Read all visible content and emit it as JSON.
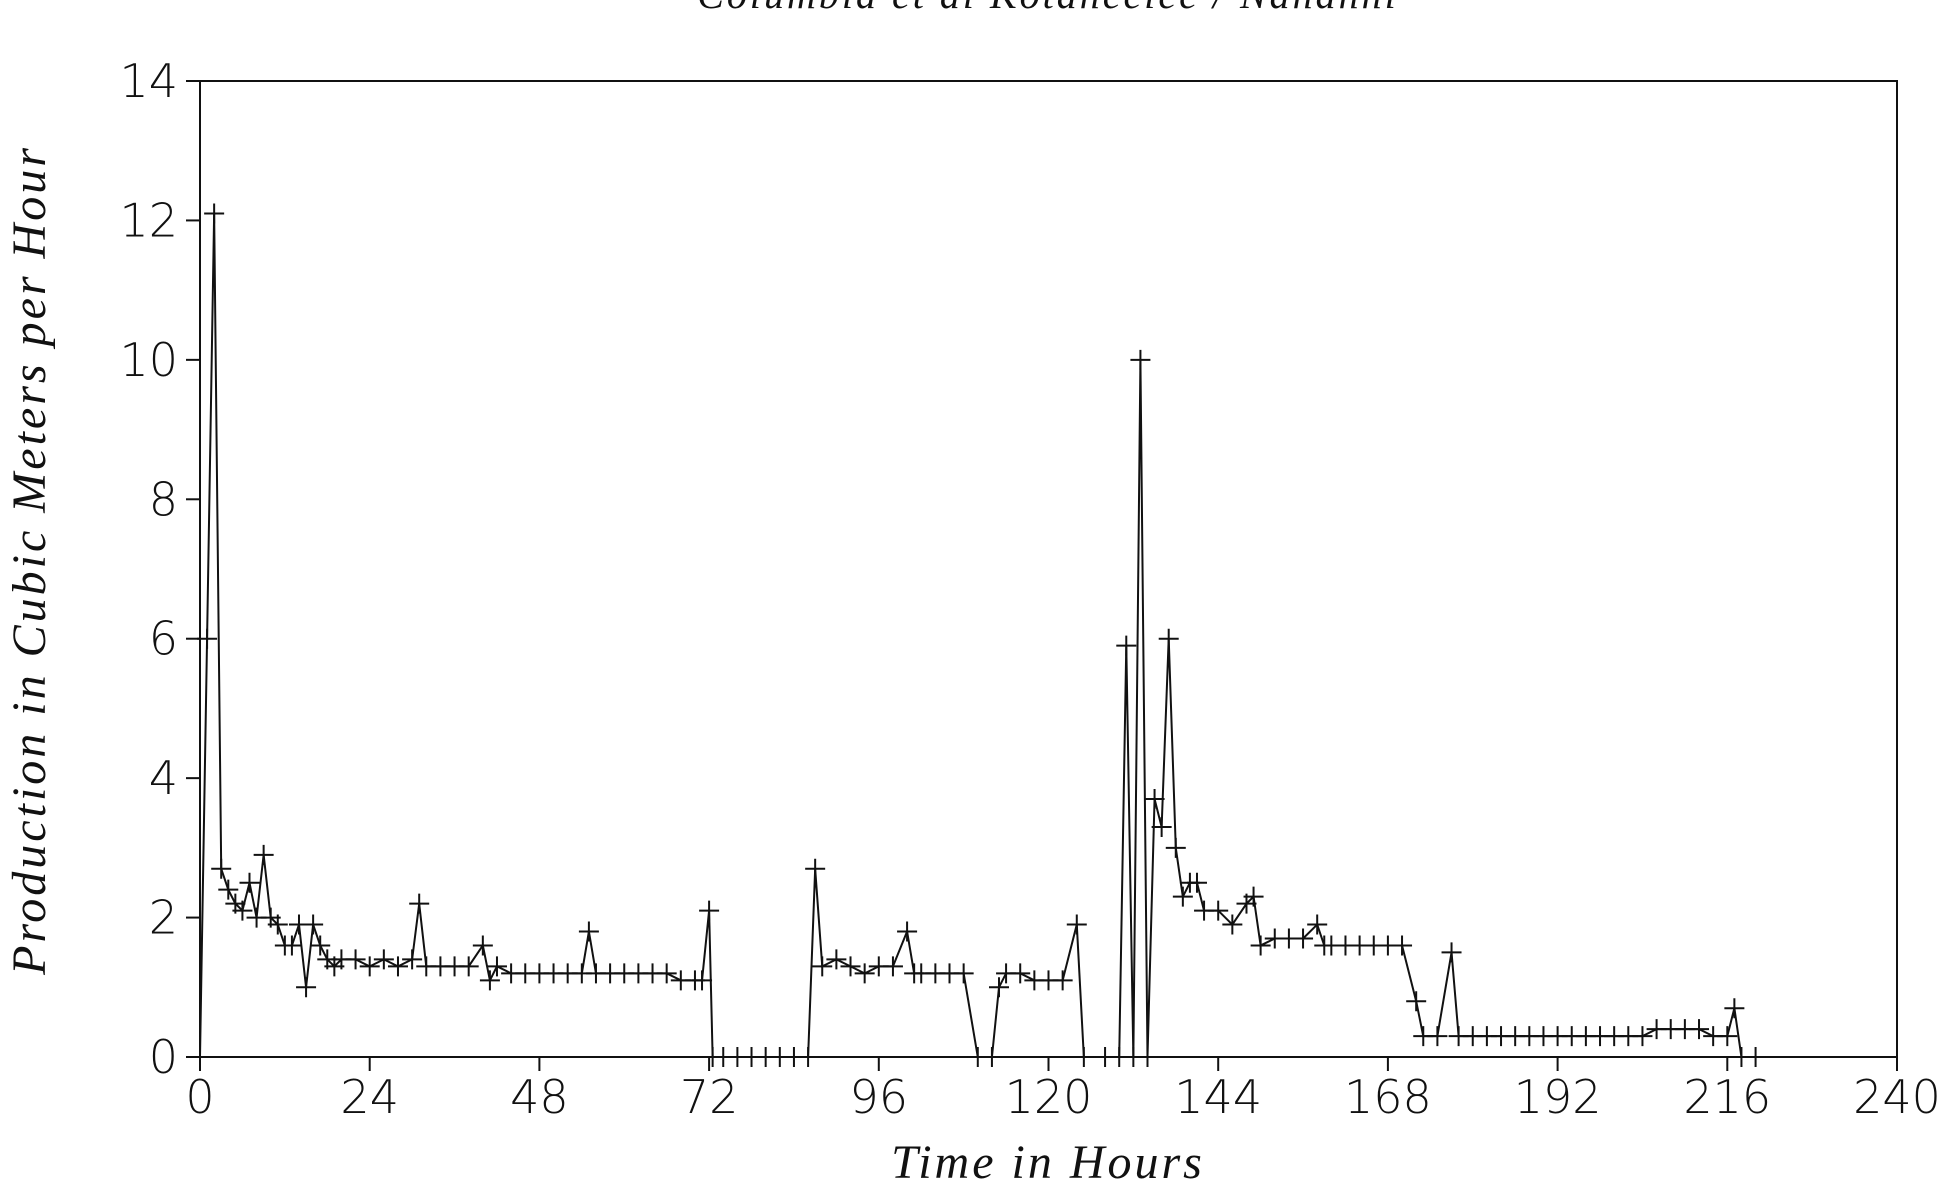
{
  "chart_data": {
    "type": "line",
    "title": "Columbia et al Kotaneelee / Nahanni",
    "x_label": "Time in Hours",
    "y_label": "Production in Cubic Meters per Hour",
    "xlim": [
      0,
      240
    ],
    "xticks": [
      0,
      24,
      48,
      72,
      96,
      120,
      144,
      168,
      192,
      216,
      240
    ],
    "ylim": [
      0,
      14
    ],
    "yticks": [
      0,
      2,
      4,
      6,
      8,
      10,
      12,
      14
    ],
    "marker": "+",
    "color": "#111111",
    "x": [
      0,
      1,
      2,
      3,
      4,
      5,
      6,
      7,
      8,
      9,
      10,
      11,
      12,
      13,
      14,
      15,
      16,
      17,
      18,
      19,
      20,
      22,
      24,
      26,
      28,
      30,
      31,
      32,
      34,
      36,
      38,
      40,
      41,
      42,
      44,
      46,
      48,
      50,
      52,
      54,
      55,
      56,
      58,
      60,
      62,
      64,
      66,
      68,
      70,
      71,
      72,
      72.5,
      74,
      76,
      78,
      80,
      82,
      84,
      86,
      87,
      88,
      90,
      92,
      94,
      96,
      98,
      100,
      101,
      102,
      104,
      106,
      108,
      110,
      112,
      113,
      114,
      116,
      118,
      120,
      122,
      124,
      125,
      128,
      130,
      131,
      132,
      133,
      134,
      135,
      136,
      137,
      138,
      139,
      140,
      141,
      142,
      144,
      146,
      148,
      149,
      150,
      152,
      154,
      156,
      158,
      159,
      160,
      162,
      164,
      166,
      168,
      170,
      172,
      173,
      175,
      177,
      178,
      180,
      182,
      184,
      186,
      188,
      190,
      192,
      194,
      196,
      198,
      200,
      202,
      204,
      206,
      208,
      210,
      212,
      214,
      216,
      217,
      218,
      220
    ],
    "values": [
      0,
      6,
      12.1,
      2.7,
      2.4,
      2.2,
      2.1,
      2.5,
      2.0,
      2.9,
      2.0,
      1.9,
      1.6,
      1.6,
      1.9,
      1.0,
      1.9,
      1.6,
      1.4,
      1.3,
      1.4,
      1.4,
      1.3,
      1.4,
      1.3,
      1.4,
      2.2,
      1.3,
      1.3,
      1.3,
      1.3,
      1.6,
      1.1,
      1.3,
      1.2,
      1.2,
      1.2,
      1.2,
      1.2,
      1.2,
      1.8,
      1.2,
      1.2,
      1.2,
      1.2,
      1.2,
      1.2,
      1.1,
      1.1,
      1.1,
      2.1,
      0,
      0,
      0,
      0,
      0,
      0,
      0,
      0,
      2.7,
      1.3,
      1.4,
      1.3,
      1.2,
      1.3,
      1.3,
      1.8,
      1.2,
      1.2,
      1.2,
      1.2,
      1.2,
      0,
      0,
      1.0,
      1.2,
      1.2,
      1.1,
      1.1,
      1.1,
      1.9,
      0,
      0,
      0,
      5.9,
      0,
      10,
      0,
      3.7,
      3.3,
      6.0,
      3.0,
      2.3,
      2.5,
      2.5,
      2.1,
      2.1,
      1.9,
      2.2,
      2.3,
      1.6,
      1.7,
      1.7,
      1.7,
      1.9,
      1.6,
      1.6,
      1.6,
      1.6,
      1.6,
      1.6,
      1.6,
      0.8,
      0.3,
      0.3,
      1.5,
      0.3,
      0.3,
      0.3,
      0.3,
      0.3,
      0.3,
      0.3,
      0.3,
      0.3,
      0.3,
      0.3,
      0.3,
      0.3,
      0.3,
      0.4,
      0.4,
      0.4,
      0.4,
      0.3,
      0.3,
      0.7,
      0,
      0
    ]
  }
}
